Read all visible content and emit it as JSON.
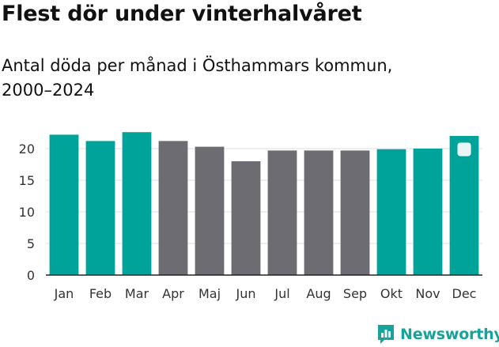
{
  "header": {
    "title": "Flest dör under vinterhalvåret",
    "subtitle": "Antal döda per månad i Östhammars kommun, 2000–2024"
  },
  "chart_data": {
    "type": "bar",
    "title": "Flest dör under vinterhalvåret",
    "subtitle": "Antal döda per månad i Östhammars kommun, 2000–2024",
    "categories": [
      "Jan",
      "Feb",
      "Mar",
      "Apr",
      "Maj",
      "Jun",
      "Jul",
      "Aug",
      "Sep",
      "Okt",
      "Nov",
      "Dec"
    ],
    "values": [
      22.2,
      21.2,
      22.6,
      21.2,
      20.3,
      18.0,
      19.7,
      19.7,
      19.7,
      19.9,
      20.0,
      22.0
    ],
    "highlight": [
      true,
      true,
      true,
      false,
      false,
      false,
      false,
      false,
      false,
      true,
      true,
      true
    ],
    "yticks": [
      0,
      5,
      10,
      15,
      20
    ],
    "ylim": [
      0,
      25
    ],
    "xlabel": "",
    "ylabel": "",
    "grid": true,
    "colors": {
      "highlight": "#00a39a",
      "other": "#6d6c72",
      "grid": "#dddddd",
      "axis": "#222222"
    }
  },
  "brand": {
    "name": "Newsworthy",
    "color": "#17a39a",
    "icon": "bar-chart-speech-icon"
  }
}
